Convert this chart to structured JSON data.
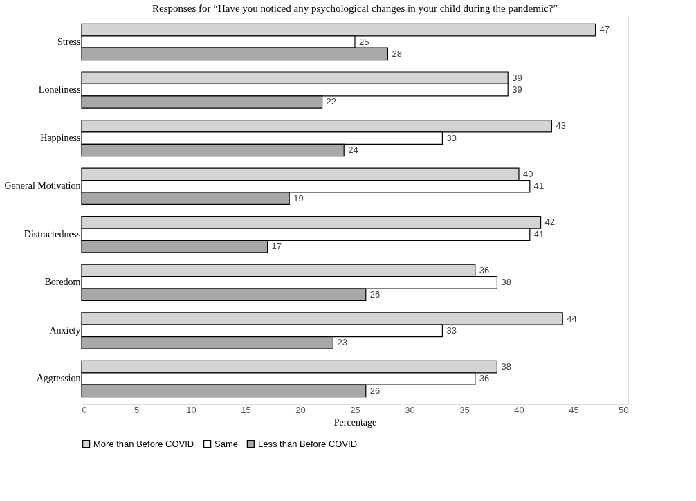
{
  "chart_data": {
    "type": "bar",
    "orientation": "horizontal",
    "title": "Responses for “Have you noticed any psychological changes in your child during the pandemic?”",
    "xlabel": "Percentage",
    "categories": [
      "Stress",
      "Loneliness",
      "Happiness",
      "General Motivation",
      "Distractedness",
      "Boredom",
      "Anxiety",
      "Aggression"
    ],
    "series": [
      {
        "name": "More than Before COVID",
        "color": "#d4d4d4",
        "values": [
          47,
          39,
          43,
          40,
          42,
          36,
          44,
          38
        ]
      },
      {
        "name": "Same",
        "color": "#ffffff",
        "values": [
          25,
          39,
          33,
          41,
          41,
          38,
          33,
          36
        ]
      },
      {
        "name": "Less than Before COVID",
        "color": "#a8a8a8",
        "values": [
          28,
          22,
          24,
          19,
          17,
          26,
          23,
          26
        ]
      }
    ],
    "xlim": [
      0,
      50
    ],
    "xticks": [
      0,
      5,
      10,
      15,
      20,
      25,
      30,
      35,
      40,
      45,
      50
    ],
    "grid": false,
    "legend": "bottom",
    "data_labels": true
  }
}
